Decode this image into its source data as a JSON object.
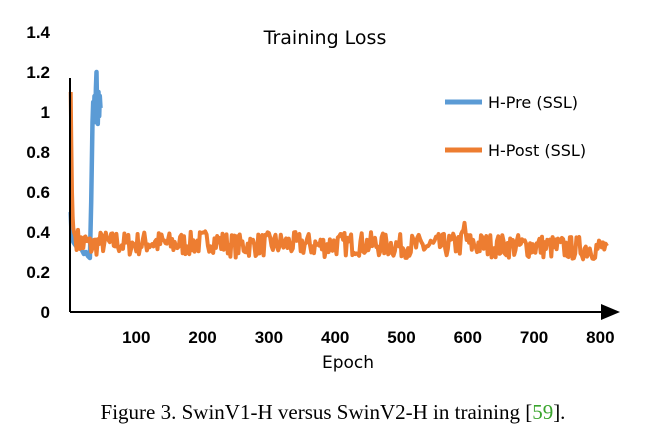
{
  "chart_data": {
    "type": "line",
    "title": "Training Loss",
    "xlabel": "Epoch",
    "ylabel": "",
    "xlim": [
      0,
      810
    ],
    "ylim": [
      0,
      1.4
    ],
    "x_ticks": [
      "100",
      "200",
      "300",
      "400",
      "500",
      "600",
      "700",
      "800"
    ],
    "y_ticks": [
      "0",
      "0.2",
      "0.4",
      "0.6",
      "0.8",
      "1",
      "1.2",
      "1.4"
    ],
    "legend_position": "right",
    "grid": false,
    "series": [
      {
        "name": "H-Pre (SSL)",
        "color": "#5b9bd5",
        "x": [
          1,
          2,
          3,
          4,
          5,
          7,
          9,
          12,
          15,
          18,
          21,
          24,
          27,
          30,
          32,
          34,
          35,
          36,
          37,
          38,
          39,
          40,
          41,
          42,
          43,
          44,
          45,
          46
        ],
        "y": [
          0.5,
          0.42,
          0.38,
          0.36,
          0.35,
          0.34,
          0.33,
          0.32,
          0.33,
          0.31,
          0.29,
          0.3,
          0.28,
          0.27,
          0.55,
          0.95,
          1.05,
          1.0,
          1.08,
          0.95,
          1.12,
          1.2,
          1.0,
          0.94,
          1.1,
          0.98,
          1.08,
          1.02
        ]
      },
      {
        "name": "H-Post (SSL)",
        "color": "#ed7d31",
        "x": [
          1,
          2,
          3,
          4,
          5,
          6,
          8,
          10,
          12,
          15,
          20,
          25,
          30,
          40,
          50,
          60,
          70,
          80,
          100,
          120,
          150,
          180,
          200,
          210,
          250,
          300,
          350,
          380,
          400,
          450,
          500,
          550,
          590,
          595,
          600,
          650,
          700,
          750,
          800,
          810
        ],
        "y": [
          1.1,
          0.85,
          0.6,
          0.47,
          0.42,
          0.4,
          0.38,
          0.37,
          0.36,
          0.35,
          0.34,
          0.35,
          0.33,
          0.34,
          0.35,
          0.34,
          0.35,
          0.34,
          0.34,
          0.35,
          0.34,
          0.34,
          0.35,
          0.36,
          0.33,
          0.34,
          0.34,
          0.33,
          0.34,
          0.34,
          0.33,
          0.33,
          0.34,
          0.42,
          0.34,
          0.33,
          0.33,
          0.32,
          0.32,
          0.33
        ]
      }
    ]
  },
  "caption": {
    "text": "Figure 3. SwinV1-H versus SwinV2-H in training [",
    "ref": "59",
    "end": "]."
  }
}
